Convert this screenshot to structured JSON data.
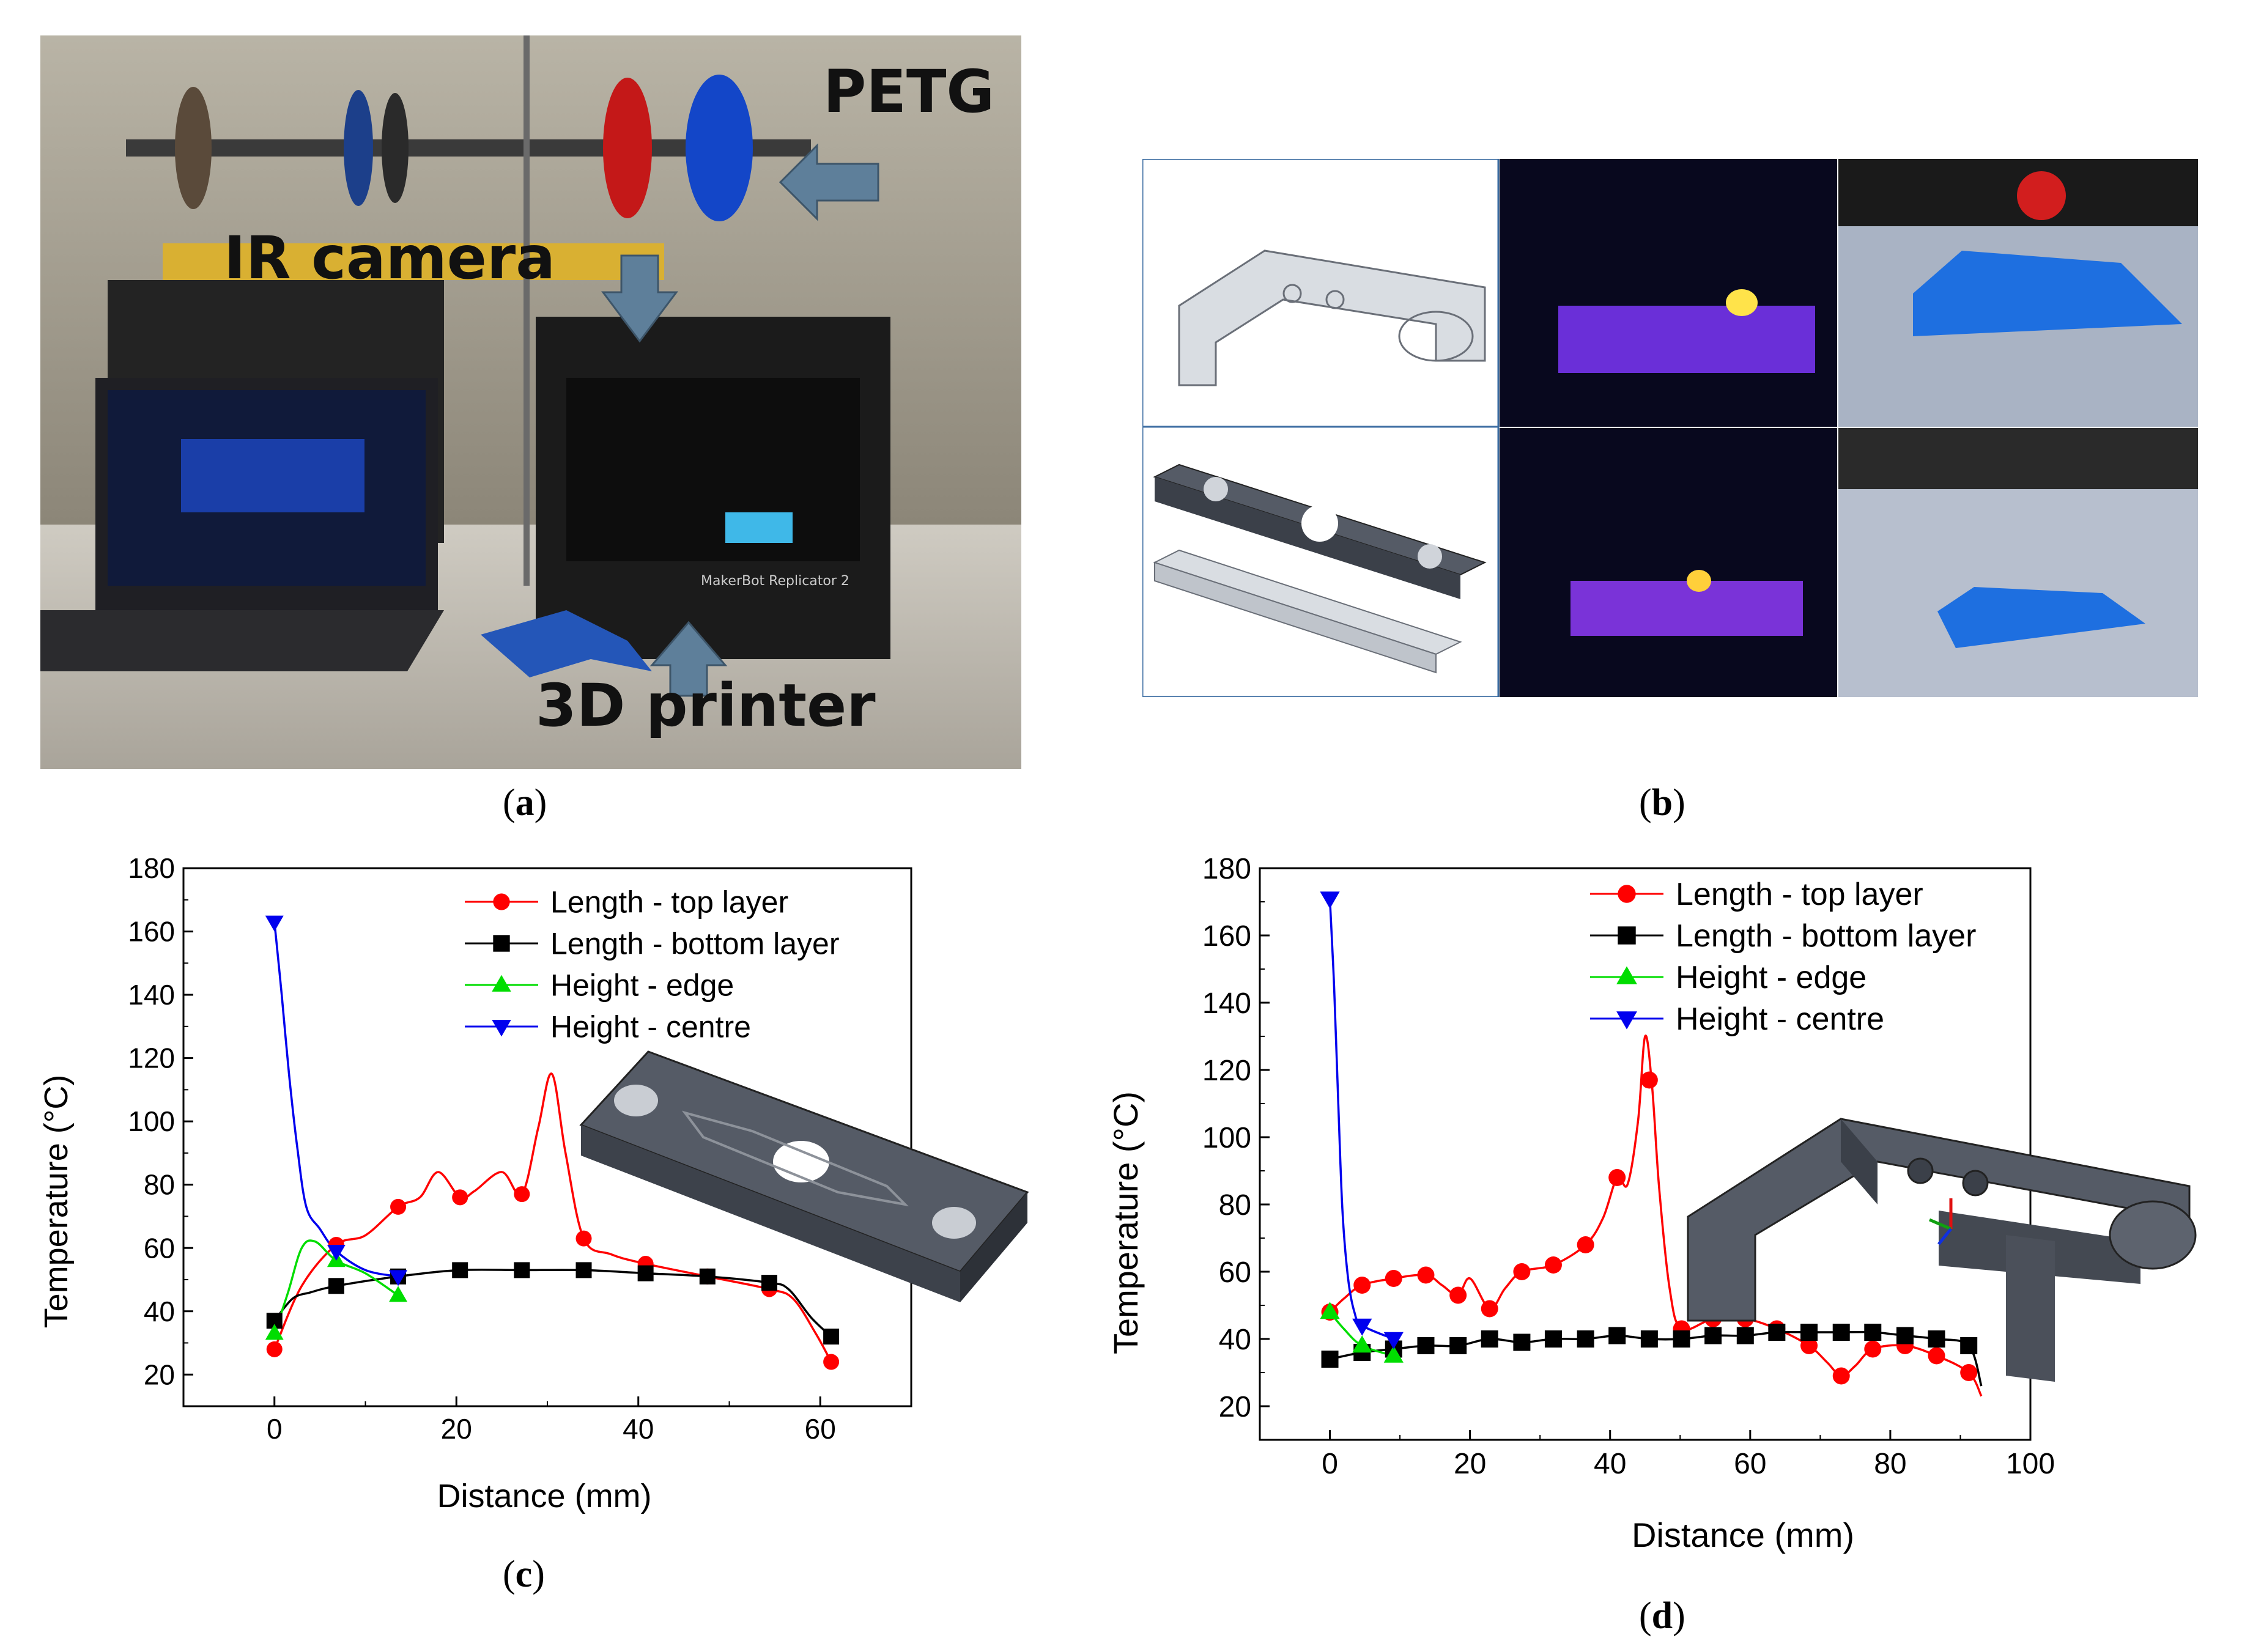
{
  "captions": {
    "a": "a",
    "b": "b",
    "c": "c",
    "d": "d"
  },
  "photo_a": {
    "labels": {
      "petg": "PETG",
      "ir_camera": "IR camera",
      "printer": "3D printer"
    },
    "printer_brand": "MakerBot Replicator 2"
  },
  "colors": {
    "top": "#ff0000",
    "bottom": "#000000",
    "edge": "#00dd00",
    "centre": "#0000ee",
    "printed_part": "#1e6fe0",
    "cad_dark": "#555b66",
    "cad_light": "#d9dde2"
  },
  "chart_data": [
    {
      "type": "line",
      "xlabel": "Distance (mm)",
      "ylabel": "Temperature (°C)",
      "xlim": [
        -10,
        70
      ],
      "ylim": [
        10,
        180
      ],
      "xticks": [
        0,
        20,
        40,
        60
      ],
      "yticks": [
        20,
        40,
        60,
        80,
        100,
        120,
        140,
        160,
        180
      ],
      "legend_position": "top-right",
      "series": [
        {
          "name": "Length - top layer",
          "marker": "circle",
          "color": "#ff0000",
          "points": [
            [
              0,
              28
            ],
            [
              6.8,
              61
            ],
            [
              13.6,
              73
            ],
            [
              20.4,
              76
            ],
            [
              27.2,
              77
            ],
            [
              34,
              63
            ],
            [
              40.8,
              55
            ],
            [
              47.6,
              51
            ],
            [
              54.4,
              47
            ],
            [
              61.2,
              24
            ]
          ],
          "curve": [
            [
              0,
              28
            ],
            [
              3,
              48
            ],
            [
              6.8,
              61
            ],
            [
              10,
              64
            ],
            [
              13.6,
              73
            ],
            [
              16,
              76
            ],
            [
              18,
              84
            ],
            [
              20.4,
              76
            ],
            [
              22,
              78
            ],
            [
              25,
              84
            ],
            [
              27.2,
              77
            ],
            [
              29,
              98
            ],
            [
              30.5,
              115
            ],
            [
              32,
              90
            ],
            [
              34,
              63
            ],
            [
              37,
              58
            ],
            [
              40.8,
              55
            ],
            [
              47.6,
              51
            ],
            [
              54.4,
              47
            ],
            [
              57,
              44
            ],
            [
              59.5,
              33
            ],
            [
              61.2,
              24
            ]
          ]
        },
        {
          "name": "Length - bottom layer",
          "marker": "square",
          "color": "#000000",
          "points": [
            [
              0,
              37
            ],
            [
              6.8,
              48
            ],
            [
              13.6,
              51
            ],
            [
              20.4,
              53
            ],
            [
              27.2,
              53
            ],
            [
              34,
              53
            ],
            [
              40.8,
              52
            ],
            [
              47.6,
              51
            ],
            [
              54.4,
              49
            ],
            [
              61.2,
              32
            ]
          ],
          "curve": [
            [
              0,
              37
            ],
            [
              2,
              44
            ],
            [
              4,
              46
            ],
            [
              6.8,
              48
            ],
            [
              13.6,
              51
            ],
            [
              20.4,
              53
            ],
            [
              27.2,
              53
            ],
            [
              34,
              53
            ],
            [
              40.8,
              52
            ],
            [
              47.6,
              51
            ],
            [
              54.4,
              49
            ],
            [
              56.5,
              47
            ],
            [
              59,
              38
            ],
            [
              61.2,
              32
            ]
          ]
        },
        {
          "name": "Height - edge",
          "marker": "triangle-up",
          "color": "#00dd00",
          "points": [
            [
              0,
              33
            ],
            [
              6.8,
              56
            ],
            [
              13.6,
              45
            ]
          ],
          "curve": [
            [
              0,
              33
            ],
            [
              1.5,
              46
            ],
            [
              3,
              60
            ],
            [
              4.5,
              62
            ],
            [
              6.8,
              56
            ],
            [
              10,
              52
            ],
            [
              13.6,
              45
            ]
          ]
        },
        {
          "name": "Height - centre",
          "marker": "triangle-down",
          "color": "#0000ee",
          "points": [
            [
              0,
              163
            ],
            [
              6.8,
              59
            ],
            [
              13.6,
              51
            ]
          ],
          "curve": [
            [
              0,
              163
            ],
            [
              0.8,
              140
            ],
            [
              1.6,
              115
            ],
            [
              2.5,
              92
            ],
            [
              3.5,
              73
            ],
            [
              5,
              66
            ],
            [
              6.8,
              59
            ],
            [
              10,
              53
            ],
            [
              13.6,
              51
            ]
          ]
        }
      ]
    },
    {
      "type": "line",
      "xlabel": "Distance (mm)",
      "ylabel": "Temperature (°C)",
      "xlim": [
        -10,
        100
      ],
      "ylim": [
        10,
        180
      ],
      "xticks": [
        0,
        20,
        40,
        60,
        80,
        100
      ],
      "yticks": [
        20,
        40,
        60,
        80,
        100,
        120,
        140,
        160,
        180
      ],
      "legend_position": "top-right",
      "series": [
        {
          "name": "Length - top layer",
          "marker": "circle",
          "color": "#ff0000",
          "points": [
            [
              0,
              48
            ],
            [
              4.6,
              56
            ],
            [
              9.1,
              58
            ],
            [
              13.7,
              59
            ],
            [
              18.3,
              53
            ],
            [
              22.8,
              49
            ],
            [
              27.4,
              60
            ],
            [
              31.9,
              62
            ],
            [
              36.5,
              68
            ],
            [
              41,
              88
            ],
            [
              45.6,
              117
            ],
            [
              50.2,
              43
            ],
            [
              54.7,
              46
            ],
            [
              59.3,
              46
            ],
            [
              63.8,
              43
            ],
            [
              68.4,
              38
            ],
            [
              73,
              29
            ],
            [
              77.5,
              37
            ],
            [
              82.1,
              38
            ],
            [
              86.6,
              35
            ],
            [
              91.2,
              30
            ]
          ],
          "curve": [
            [
              0,
              48
            ],
            [
              2,
              52
            ],
            [
              4.6,
              56
            ],
            [
              9.1,
              58
            ],
            [
              13.7,
              59
            ],
            [
              16,
              56
            ],
            [
              18.3,
              53
            ],
            [
              20,
              58
            ],
            [
              22.8,
              49
            ],
            [
              25,
              55
            ],
            [
              27.4,
              60
            ],
            [
              31.9,
              62
            ],
            [
              36.5,
              68
            ],
            [
              39,
              76
            ],
            [
              41,
              88
            ],
            [
              42.5,
              86
            ],
            [
              44,
              105
            ],
            [
              45,
              130
            ],
            [
              46,
              115
            ],
            [
              47,
              85
            ],
            [
              48.5,
              55
            ],
            [
              50.2,
              43
            ],
            [
              54.7,
              46
            ],
            [
              59.3,
              46
            ],
            [
              63.8,
              43
            ],
            [
              68.4,
              38
            ],
            [
              71,
              33
            ],
            [
              73,
              29
            ],
            [
              75,
              32
            ],
            [
              77.5,
              37
            ],
            [
              82.1,
              38
            ],
            [
              86.6,
              35
            ],
            [
              91.2,
              30
            ],
            [
              93,
              23
            ]
          ]
        },
        {
          "name": "Length - bottom layer",
          "marker": "square",
          "color": "#000000",
          "points": [
            [
              0,
              34
            ],
            [
              4.6,
              36
            ],
            [
              9.1,
              37
            ],
            [
              13.7,
              38
            ],
            [
              18.3,
              38
            ],
            [
              22.8,
              40
            ],
            [
              27.4,
              39
            ],
            [
              31.9,
              40
            ],
            [
              36.5,
              40
            ],
            [
              41,
              41
            ],
            [
              45.6,
              40
            ],
            [
              50.2,
              40
            ],
            [
              54.7,
              41
            ],
            [
              59.3,
              41
            ],
            [
              63.8,
              42
            ],
            [
              68.4,
              42
            ],
            [
              73,
              42
            ],
            [
              77.5,
              42
            ],
            [
              82.1,
              41
            ],
            [
              86.6,
              40
            ],
            [
              91.2,
              38
            ]
          ],
          "curve": [
            [
              0,
              34
            ],
            [
              4.6,
              36
            ],
            [
              9.1,
              37
            ],
            [
              13.7,
              38
            ],
            [
              18.3,
              38
            ],
            [
              22.8,
              40
            ],
            [
              27.4,
              39
            ],
            [
              31.9,
              40
            ],
            [
              36.5,
              40
            ],
            [
              41,
              41
            ],
            [
              45.6,
              40
            ],
            [
              50.2,
              40
            ],
            [
              54.7,
              41
            ],
            [
              59.3,
              41
            ],
            [
              63.8,
              42
            ],
            [
              68.4,
              42
            ],
            [
              73,
              42
            ],
            [
              77.5,
              42
            ],
            [
              82.1,
              41
            ],
            [
              86.6,
              40
            ],
            [
              91.2,
              38
            ],
            [
              93,
              26
            ]
          ]
        },
        {
          "name": "Height - edge",
          "marker": "triangle-up",
          "color": "#00dd00",
          "points": [
            [
              0,
              48
            ],
            [
              4.6,
              38
            ],
            [
              9.1,
              35
            ]
          ],
          "curve": [
            [
              0,
              48
            ],
            [
              2,
              43
            ],
            [
              4.6,
              38
            ],
            [
              9.1,
              35
            ]
          ]
        },
        {
          "name": "Height - centre",
          "marker": "triangle-down",
          "color": "#0000ee",
          "points": [
            [
              0,
              171
            ],
            [
              4.6,
              44
            ],
            [
              9.1,
              40
            ]
          ],
          "curve": [
            [
              0,
              171
            ],
            [
              0.6,
              145
            ],
            [
              1.2,
              110
            ],
            [
              1.8,
              78
            ],
            [
              2.6,
              58
            ],
            [
              3.5,
              48
            ],
            [
              4.6,
              44
            ],
            [
              9.1,
              40
            ]
          ]
        }
      ]
    }
  ]
}
